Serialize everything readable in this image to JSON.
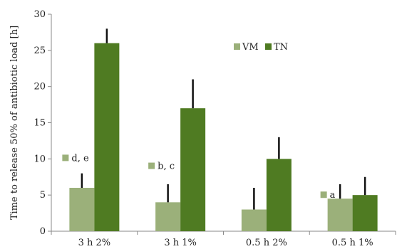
{
  "chart_data": {
    "type": "bar",
    "title": "",
    "xlabel": "",
    "ylabel": "Time to release 50% of antibiotic load [h]",
    "ylim": [
      0,
      30
    ],
    "yticks": [
      0,
      5,
      10,
      15,
      20,
      25,
      30
    ],
    "grid": false,
    "legend_position": "top-right",
    "categories": [
      "3 h 2%",
      "3 h 1%",
      "0.5 h 2%",
      "0.5 h 1%"
    ],
    "series": [
      {
        "name": "VM",
        "color": "#9bb07a",
        "values": [
          6,
          4,
          3,
          4.5
        ],
        "errors": [
          2,
          2.5,
          3,
          2
        ]
      },
      {
        "name": "TN",
        "color": "#4f7b22",
        "values": [
          26,
          17,
          10,
          5
        ],
        "errors": [
          2,
          4,
          3,
          2.5
        ]
      }
    ],
    "annotations": [
      {
        "category_index": 0,
        "text": "d, e",
        "y": 9.7
      },
      {
        "category_index": 1,
        "text": "b, c",
        "y": 8.6
      },
      {
        "category_index": 3,
        "text": "a",
        "y": 4.6
      }
    ],
    "error_bar_color": "#111111"
  }
}
